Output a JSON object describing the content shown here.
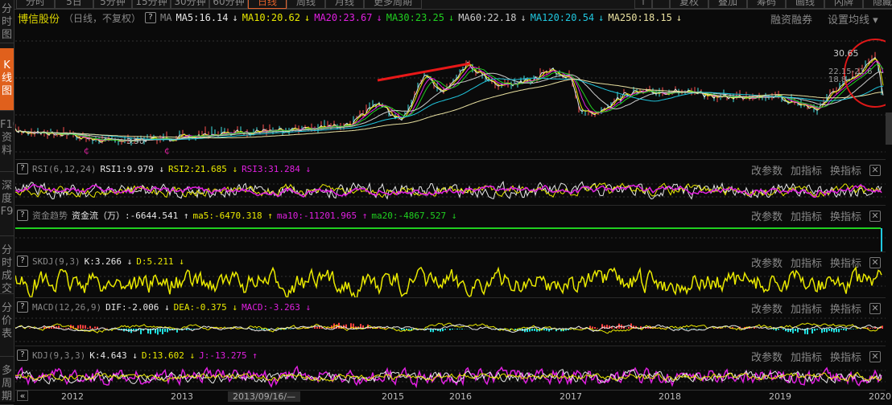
{
  "top_tabs": [
    "分时",
    "5日",
    "5分钟",
    "15分钟",
    "30分钟",
    "60分钟",
    "日线",
    "周线",
    "月线",
    "更多周期"
  ],
  "active_tab": "日线",
  "top_right_tabs": [
    "↑",
    "",
    "复权",
    "叠加",
    "筹码",
    "画线",
    "闪牌",
    "隐藏"
  ],
  "sidebar": [
    {
      "label": "分时图"
    },
    {
      "label": "K线图"
    },
    {
      "label": "F10资料"
    },
    {
      "label": "深度F9"
    },
    {
      "label": "分时成交"
    },
    {
      "label": "分价表"
    },
    {
      "label": "多周期"
    }
  ],
  "header": {
    "stock_name": "博信股份",
    "subtitle": "（日线，不复权）",
    "help": "?",
    "ma_label": "MA",
    "ma": [
      {
        "text": "MA5:16.14",
        "color": "#e8e8e8"
      },
      {
        "text": "MA10:20.62",
        "color": "#e8e800"
      },
      {
        "text": "MA20:23.67",
        "color": "#e020e0"
      },
      {
        "text": "MA30:23.25",
        "color": "#20d020"
      },
      {
        "text": "MA60:22.18",
        "color": "#cccccc"
      },
      {
        "text": "MA120:20.54",
        "color": "#20c8e0"
      },
      {
        "text": "MA250:18.15",
        "color": "#e8e0a0"
      }
    ],
    "arrow": "↓",
    "margin_link": "融资融券",
    "set_ma": "设置均线 ▾"
  },
  "main_chart": {
    "high_label": "30.65",
    "low_label": "3.90",
    "range_label": "22.15-21.6",
    "label3": "18.8"
  },
  "panel_buttons": {
    "params": "改参数",
    "add": "加指标",
    "switch": "换指标",
    "close": "✕"
  },
  "panels": [
    {
      "name": "RSI(6,12,24)",
      "values": [
        {
          "text": "RSI1:9.979 ↓",
          "color": "#e8e8e8"
        },
        {
          "text": "RSI2:21.685 ↓",
          "color": "#e8e800"
        },
        {
          "text": "RSI3:31.284 ↓",
          "color": "#e020e0"
        }
      ]
    },
    {
      "name": "资金趋势",
      "values": [
        {
          "text": "资金流（万）:-6644.541 ↑",
          "color": "#e8e8e8"
        },
        {
          "text": "ma5:-6470.318 ↑",
          "color": "#e8e800"
        },
        {
          "text": "ma10:-11201.965 ↑",
          "color": "#e020e0"
        },
        {
          "text": "ma20:-4867.527 ↓",
          "color": "#20d020"
        }
      ]
    },
    {
      "name": "SKDJ(9,3)",
      "values": [
        {
          "text": "K:3.266 ↓",
          "color": "#e8e8e8"
        },
        {
          "text": "D:5.211 ↓",
          "color": "#e8e800"
        }
      ]
    },
    {
      "name": "MACD(12,26,9)",
      "values": [
        {
          "text": "DIF:-2.006 ↓",
          "color": "#e8e8e8"
        },
        {
          "text": "DEA:-0.375 ↓",
          "color": "#e8e800"
        },
        {
          "text": "MACD:-3.263 ↓",
          "color": "#e020e0"
        }
      ]
    },
    {
      "name": "KDJ(9,3,3)",
      "values": [
        {
          "text": "K:4.643 ↓",
          "color": "#e8e8e8"
        },
        {
          "text": "D:13.602 ↓",
          "color": "#e8e800"
        },
        {
          "text": "J:-13.275 ↑",
          "color": "#e020e0"
        }
      ]
    }
  ],
  "axis": {
    "scroll_left": "«",
    "cursor_date": "2013/09/16/—",
    "years": [
      "2012",
      "2013",
      "2015",
      "2016",
      "2017",
      "2018",
      "2019",
      "2020"
    ]
  }
}
